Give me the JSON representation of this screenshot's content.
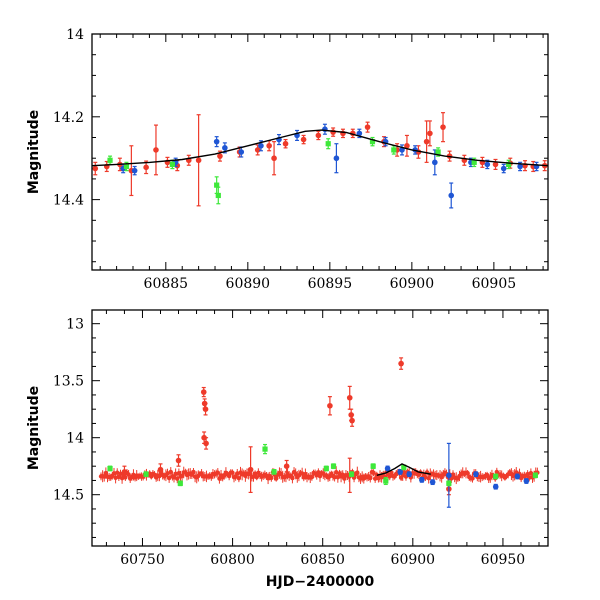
{
  "chart_data": [
    {
      "type": "scatter",
      "panel": "top",
      "title": "",
      "xlabel": "",
      "ylabel": "Magnitude",
      "xlim": [
        60880.5,
        60908.3
      ],
      "ylim": [
        14.57,
        14.0
      ],
      "y_inverted": true,
      "x_ticks": [
        60885,
        60890,
        60895,
        60900,
        60905
      ],
      "x_tick_labels": [
        "60885",
        "60890",
        "60895",
        "60900",
        "60905"
      ],
      "y_ticks": [
        14.0,
        14.2,
        14.4
      ],
      "y_tick_labels": [
        "14",
        "14.2",
        "14.4"
      ],
      "grid": false,
      "model_curve": {
        "name": "fit",
        "color": "#000000",
        "x": [
          60880.5,
          60882,
          60884,
          60886,
          60888,
          60890,
          60892,
          60893.5,
          60894.5,
          60896,
          60898,
          60900,
          60902,
          60904,
          60906,
          60908.3
        ],
        "y": [
          14.318,
          14.315,
          14.31,
          14.303,
          14.29,
          14.27,
          14.25,
          14.235,
          14.232,
          14.238,
          14.26,
          14.28,
          14.295,
          14.305,
          14.312,
          14.318
        ]
      },
      "series": [
        {
          "name": "red",
          "color": "#ee3a2a",
          "x": [
            60880.7,
            60881.4,
            60882.2,
            60882.9,
            60883.8,
            60884.4,
            60885.1,
            60885.7,
            60886.4,
            60887.0,
            60888.3,
            60889.5,
            60890.6,
            60891.3,
            60891.6,
            60892.3,
            60893.4,
            60894.3,
            60895.2,
            60895.8,
            60896.4,
            60897.3,
            60898.3,
            60899.1,
            60899.7,
            60900.4,
            60900.9,
            60901.1,
            60901.9,
            60902.3,
            60903.2,
            60904.3,
            60905.1,
            60906.0,
            60906.9,
            60907.4,
            60908.1
          ],
          "y": [
            14.325,
            14.32,
            14.315,
            14.33,
            14.322,
            14.28,
            14.31,
            14.318,
            14.305,
            14.305,
            14.295,
            14.285,
            14.28,
            14.27,
            14.3,
            14.265,
            14.255,
            14.245,
            14.237,
            14.24,
            14.24,
            14.225,
            14.26,
            14.28,
            14.27,
            14.285,
            14.26,
            14.24,
            14.225,
            14.295,
            14.305,
            14.31,
            14.315,
            14.312,
            14.318,
            14.32,
            14.318
          ],
          "yerr": [
            0.015,
            0.012,
            0.015,
            0.06,
            0.015,
            0.06,
            0.012,
            0.012,
            0.012,
            0.11,
            0.012,
            0.012,
            0.012,
            0.012,
            0.04,
            0.01,
            0.01,
            0.01,
            0.01,
            0.01,
            0.01,
            0.012,
            0.012,
            0.015,
            0.025,
            0.015,
            0.05,
            0.03,
            0.035,
            0.012,
            0.012,
            0.012,
            0.012,
            0.012,
            0.012,
            0.012,
            0.012
          ]
        },
        {
          "name": "blue",
          "color": "#1f56d4",
          "x": [
            60882.4,
            60883.1,
            60885.6,
            60888.1,
            60888.6,
            60889.6,
            60890.8,
            60891.9,
            60893.0,
            60894.7,
            60895.4,
            60896.8,
            60898.4,
            60899.4,
            60900.2,
            60901.4,
            60902.4,
            60903.6,
            60904.6,
            60905.6,
            60906.6,
            60907.6
          ],
          "y": [
            14.325,
            14.33,
            14.31,
            14.26,
            14.275,
            14.285,
            14.27,
            14.255,
            14.245,
            14.23,
            14.3,
            14.24,
            14.26,
            14.28,
            14.28,
            14.31,
            14.39,
            14.31,
            14.315,
            14.325,
            14.32,
            14.32
          ],
          "yerr": [
            0.01,
            0.01,
            0.01,
            0.012,
            0.012,
            0.012,
            0.012,
            0.012,
            0.012,
            0.012,
            0.035,
            0.01,
            0.01,
            0.012,
            0.01,
            0.03,
            0.03,
            0.01,
            0.01,
            0.01,
            0.01,
            0.01
          ]
        },
        {
          "name": "green",
          "color": "#3ee83a",
          "x": [
            60881.6,
            60882.6,
            60885.4,
            60888.1,
            60888.2,
            60894.9,
            60897.6,
            60898.9,
            60901.6,
            60903.8,
            60905.9
          ],
          "y": [
            14.305,
            14.32,
            14.315,
            14.365,
            14.39,
            14.265,
            14.26,
            14.28,
            14.285,
            14.31,
            14.315
          ],
          "yerr": [
            0.01,
            0.01,
            0.01,
            0.02,
            0.02,
            0.012,
            0.01,
            0.01,
            0.01,
            0.01,
            0.01
          ]
        }
      ]
    },
    {
      "type": "scatter",
      "panel": "bottom",
      "title": "",
      "xlabel": "HJD−2400000",
      "ylabel": "Magnitude",
      "xlim": [
        60722,
        60975
      ],
      "ylim": [
        14.95,
        12.88
      ],
      "y_inverted": true,
      "x_ticks": [
        60750,
        60800,
        60850,
        60900,
        60950
      ],
      "x_tick_labels": [
        "60750",
        "60800",
        "60850",
        "60900",
        "60950"
      ],
      "y_ticks": [
        13.0,
        13.5,
        14.0,
        14.5
      ],
      "y_tick_labels": [
        "13",
        "13.5",
        "14",
        "14.5"
      ],
      "grid": false,
      "model_curve": {
        "name": "fit",
        "color": "#000000",
        "x": [
          60880,
          60885,
          60890,
          60894,
          60898,
          60903,
          60910
        ],
        "y": [
          14.33,
          14.31,
          14.27,
          14.23,
          14.26,
          14.3,
          14.32
        ]
      },
      "baseline": {
        "color": "#ee3a2a",
        "y": 14.33,
        "x_start": 60727,
        "x_end": 60970,
        "scatter": 0.03
      },
      "series": [
        {
          "name": "red",
          "color": "#ee3a2a",
          "x": [
            60784,
            60784.5,
            60785,
            60784.2,
            60785.3,
            60854,
            60865,
            60865.8,
            60866.3,
            60893.5,
            60920,
            60740,
            60760,
            60770,
            60810,
            60830,
            60865
          ],
          "y": [
            13.6,
            13.7,
            13.75,
            14.0,
            14.05,
            13.72,
            13.65,
            13.8,
            13.85,
            13.35,
            14.45,
            14.3,
            14.28,
            14.2,
            14.28,
            14.25,
            14.33
          ],
          "yerr": [
            0.04,
            0.04,
            0.05,
            0.05,
            0.05,
            0.08,
            0.1,
            0.05,
            0.05,
            0.05,
            0.05,
            0.05,
            0.05,
            0.05,
            0.2,
            0.05,
            0.15
          ]
        },
        {
          "name": "blue",
          "color": "#1f56d4",
          "x": [
            60886,
            60893,
            60898,
            60905,
            60911,
            60920,
            60935,
            60946,
            60958,
            60963
          ],
          "y": [
            14.27,
            14.3,
            14.32,
            14.37,
            14.39,
            14.33,
            14.32,
            14.43,
            14.34,
            14.38
          ],
          "yerr": [
            0.02,
            0.02,
            0.02,
            0.02,
            0.02,
            0.28,
            0.02,
            0.02,
            0.02,
            0.02
          ]
        },
        {
          "name": "green",
          "color": "#3ee83a",
          "x": [
            60732,
            60752,
            60771,
            60818,
            60823,
            60852,
            60856,
            60866,
            60878,
            60885,
            60895,
            60920,
            60946,
            60968
          ],
          "y": [
            14.27,
            14.32,
            14.4,
            14.1,
            14.3,
            14.27,
            14.25,
            14.32,
            14.25,
            14.38,
            14.26,
            14.4,
            14.34,
            14.33
          ],
          "yerr": [
            0.02,
            0.02,
            0.02,
            0.04,
            0.02,
            0.02,
            0.02,
            0.02,
            0.02,
            0.03,
            0.02,
            0.02,
            0.02,
            0.02
          ]
        }
      ]
    }
  ]
}
